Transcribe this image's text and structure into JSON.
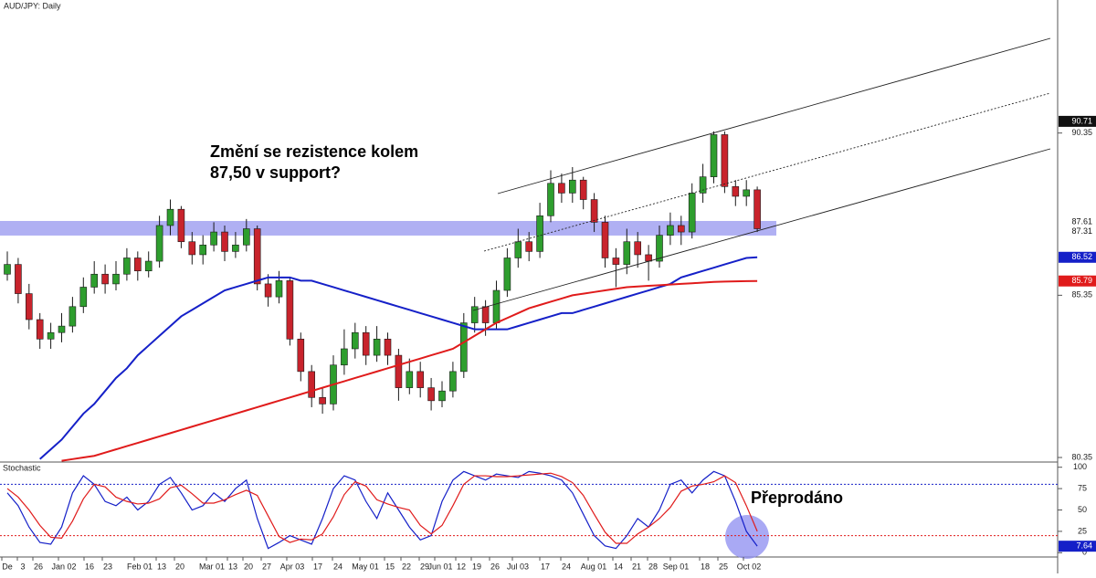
{
  "chart_data": [
    {
      "type": "candlestick",
      "title": "AUD/JPY: Daily",
      "open": [
        86.0,
        86.3,
        85.4,
        84.6,
        84.0,
        84.2,
        84.4,
        85.0,
        85.6,
        86.0,
        85.7,
        86.0,
        86.5,
        86.1,
        86.4,
        87.5,
        88.0,
        87.0,
        86.6,
        86.9,
        87.3,
        86.7,
        86.9,
        87.4,
        85.7,
        85.3,
        85.8,
        84.0,
        83.0,
        82.2,
        82.0,
        83.2,
        83.7,
        84.2,
        83.5,
        84.0,
        83.5,
        82.5,
        83.0,
        82.5,
        82.1,
        82.4,
        83.0,
        84.5,
        85.0,
        84.5,
        85.5,
        86.5,
        87.0,
        86.7,
        87.8,
        88.8,
        88.5,
        88.9,
        88.3,
        87.6,
        86.5,
        86.3,
        87.0,
        86.6,
        86.4,
        87.2,
        87.5,
        87.3,
        88.5,
        89.0,
        90.3,
        88.7,
        88.4,
        88.6
      ],
      "high": [
        86.7,
        86.5,
        85.7,
        84.8,
        84.5,
        84.8,
        85.3,
        85.9,
        86.4,
        86.3,
        86.4,
        86.8,
        86.7,
        86.7,
        87.8,
        88.3,
        88.1,
        87.3,
        87.2,
        87.6,
        87.5,
        87.3,
        87.7,
        87.5,
        86.0,
        86.1,
        85.9,
        84.2,
        83.2,
        82.5,
        83.5,
        84.3,
        84.5,
        84.4,
        84.4,
        84.2,
        83.7,
        83.4,
        83.3,
        82.8,
        82.7,
        83.3,
        84.8,
        85.3,
        85.2,
        85.8,
        86.8,
        87.4,
        87.3,
        88.2,
        89.2,
        89.1,
        89.3,
        89.0,
        88.5,
        87.8,
        86.8,
        87.4,
        87.3,
        86.9,
        87.5,
        87.9,
        87.8,
        88.8,
        89.4,
        90.4,
        90.4,
        88.9,
        88.9,
        88.7
      ],
      "low": [
        85.8,
        85.1,
        84.3,
        83.7,
        83.7,
        83.9,
        84.2,
        84.8,
        85.4,
        85.4,
        85.5,
        85.8,
        85.8,
        85.9,
        86.2,
        87.2,
        86.8,
        86.3,
        86.3,
        86.7,
        86.4,
        86.5,
        86.7,
        85.5,
        85.0,
        85.1,
        83.8,
        82.7,
        81.9,
        81.7,
        81.8,
        82.9,
        83.4,
        83.2,
        83.3,
        83.2,
        82.1,
        82.3,
        82.2,
        81.8,
        81.9,
        82.2,
        82.8,
        84.2,
        84.1,
        84.3,
        85.3,
        86.2,
        86.4,
        86.5,
        87.6,
        88.2,
        88.2,
        88.0,
        87.3,
        86.2,
        85.6,
        86.0,
        86.2,
        85.8,
        86.2,
        86.9,
        86.9,
        87.1,
        88.2,
        88.8,
        88.5,
        88.1,
        88.1,
        87.3
      ],
      "close": [
        86.3,
        85.4,
        84.6,
        84.0,
        84.2,
        84.4,
        85.0,
        85.6,
        86.0,
        85.7,
        86.0,
        86.5,
        86.1,
        86.4,
        87.5,
        88.0,
        87.0,
        86.6,
        86.9,
        87.3,
        86.7,
        86.9,
        87.4,
        85.7,
        85.3,
        85.8,
        84.0,
        83.0,
        82.2,
        82.0,
        83.2,
        83.7,
        84.2,
        83.5,
        84.0,
        83.5,
        82.5,
        83.0,
        82.5,
        82.1,
        82.4,
        83.0,
        84.5,
        85.0,
        84.5,
        85.5,
        86.5,
        87.0,
        86.7,
        87.8,
        88.8,
        88.5,
        88.9,
        88.3,
        87.6,
        86.5,
        86.3,
        87.0,
        86.6,
        86.4,
        87.2,
        87.5,
        87.3,
        88.5,
        89.0,
        90.3,
        88.7,
        88.4,
        88.6,
        87.4
      ],
      "up_color": "#2e9e2e",
      "down_color": "#c8232c",
      "lines": [
        {
          "color": "#1520c8",
          "values": [
            null,
            null,
            null,
            80.3,
            80.6,
            80.9,
            81.3,
            81.7,
            82.0,
            82.4,
            82.8,
            83.1,
            83.5,
            83.8,
            84.1,
            84.4,
            84.7,
            84.9,
            85.1,
            85.3,
            85.5,
            85.6,
            85.7,
            85.8,
            85.9,
            85.9,
            85.9,
            85.8,
            85.8,
            85.7,
            85.6,
            85.5,
            85.4,
            85.3,
            85.2,
            85.1,
            85.0,
            84.9,
            84.8,
            84.7,
            84.6,
            84.5,
            84.4,
            84.3,
            84.3,
            84.3,
            84.3,
            84.4,
            84.5,
            84.6,
            84.7,
            84.8,
            84.8,
            84.9,
            85.0,
            85.1,
            85.2,
            85.3,
            85.4,
            85.5,
            85.6,
            85.7,
            85.9,
            86.0,
            86.1,
            86.2,
            86.3,
            86.4,
            86.5,
            86.52
          ]
        },
        {
          "color": "#e01b1b",
          "values": [
            null,
            null,
            null,
            null,
            null,
            80.25,
            80.3,
            80.35,
            80.4,
            80.5,
            80.6,
            80.7,
            80.8,
            80.9,
            81.0,
            81.1,
            81.2,
            81.3,
            81.4,
            81.5,
            81.6,
            81.7,
            81.8,
            81.9,
            82.0,
            82.1,
            82.2,
            82.3,
            82.4,
            82.5,
            82.6,
            82.7,
            82.8,
            82.9,
            83.0,
            83.1,
            83.2,
            83.3,
            83.4,
            83.5,
            83.6,
            83.7,
            83.9,
            84.1,
            84.3,
            84.5,
            84.65,
            84.8,
            84.95,
            85.05,
            85.15,
            85.25,
            85.35,
            85.4,
            85.45,
            85.5,
            85.55,
            85.6,
            85.62,
            85.64,
            85.66,
            85.68,
            85.7,
            85.72,
            85.74,
            85.76,
            85.77,
            85.78,
            85.785,
            85.79
          ]
        }
      ],
      "zone": [
        87.19,
        87.64
      ],
      "zone_color": "#9c9cf0",
      "ylim": [
        80.21,
        94.45
      ],
      "yticks": [
        80.35,
        85.35,
        90.35
      ],
      "price_labels": [
        {
          "value": 90.71,
          "color": "#111111"
        },
        {
          "value": 87.61,
          "color": "#ffffff"
        },
        {
          "value": 87.31,
          "color": "#ffffff"
        },
        {
          "value": 86.52,
          "color": "#1520c8"
        },
        {
          "value": 85.79,
          "color": "#e01b1b"
        }
      ],
      "annotation": [
        "Změní se rezistence kolem",
        "87,50 v support?"
      ],
      "x_labels": [
        "De",
        "3",
        "26",
        "Jan 02",
        "16",
        "23",
        "Feb 01",
        "13",
        "20",
        "Mar 01",
        "13",
        "20",
        "27",
        "Apr 03",
        "17",
        "24",
        "May 01",
        "15",
        "22",
        "29",
        "Jun 01",
        "12",
        "19",
        "26",
        "Jul 03",
        "17",
        "24",
        "Aug 01",
        "14",
        "21",
        "28",
        "Sep 01",
        "18",
        "25",
        "Oct 02"
      ]
    },
    {
      "type": "stochastic",
      "title": "Stochastic",
      "series": [
        {
          "color": "#1520c8",
          "values": [
            70,
            55,
            30,
            12,
            10,
            30,
            70,
            90,
            80,
            60,
            55,
            65,
            50,
            60,
            80,
            88,
            70,
            50,
            55,
            70,
            60,
            75,
            85,
            40,
            5,
            12,
            20,
            15,
            10,
            40,
            75,
            90,
            85,
            60,
            40,
            70,
            50,
            30,
            15,
            20,
            60,
            85,
            95,
            90,
            85,
            92,
            90,
            88,
            95,
            93,
            90,
            85,
            70,
            45,
            20,
            8,
            5,
            20,
            40,
            30,
            50,
            80,
            85,
            70,
            85,
            95,
            90,
            60,
            25,
            7.64
          ]
        },
        {
          "color": "#e01b1b",
          "values": [
            75,
            65,
            50,
            32,
            18,
            17,
            37,
            63,
            80,
            77,
            65,
            60,
            57,
            58,
            63,
            76,
            79,
            69,
            58,
            58,
            62,
            68,
            73,
            67,
            43,
            19,
            12,
            16,
            15,
            22,
            42,
            68,
            83,
            78,
            62,
            57,
            53,
            50,
            32,
            22,
            32,
            55,
            80,
            90,
            90,
            89,
            89,
            90,
            91,
            92,
            93,
            89,
            82,
            67,
            45,
            24,
            11,
            11,
            22,
            30,
            40,
            53,
            72,
            78,
            80,
            83,
            90,
            82,
            55,
            25
          ]
        }
      ],
      "levels": [
        {
          "value": 80,
          "color": "#1520c8"
        },
        {
          "value": 20,
          "color": "#e01b1b"
        }
      ],
      "ylim": [
        -5,
        105
      ],
      "yticks": [
        0,
        25,
        50,
        75,
        100
      ],
      "annotation": "Přeprodáno"
    }
  ]
}
